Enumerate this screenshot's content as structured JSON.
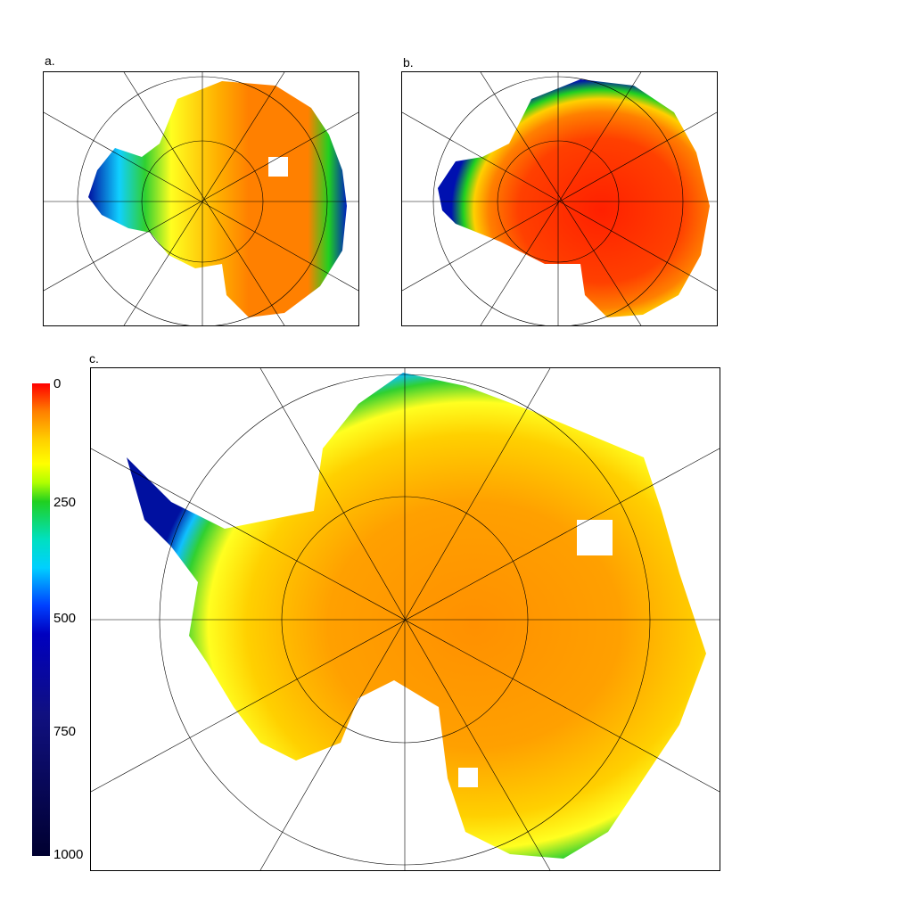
{
  "panels": {
    "a": {
      "label": "a."
    },
    "b": {
      "label": "b."
    },
    "c": {
      "label": "c."
    }
  },
  "colorbar": {
    "ticks": [
      "0",
      "250",
      "500",
      "750",
      "1000"
    ],
    "colors": [
      "#ff0000",
      "#ff8000",
      "#ffff00",
      "#20d020",
      "#00d0ff",
      "#0040ff",
      "#000030"
    ]
  }
}
